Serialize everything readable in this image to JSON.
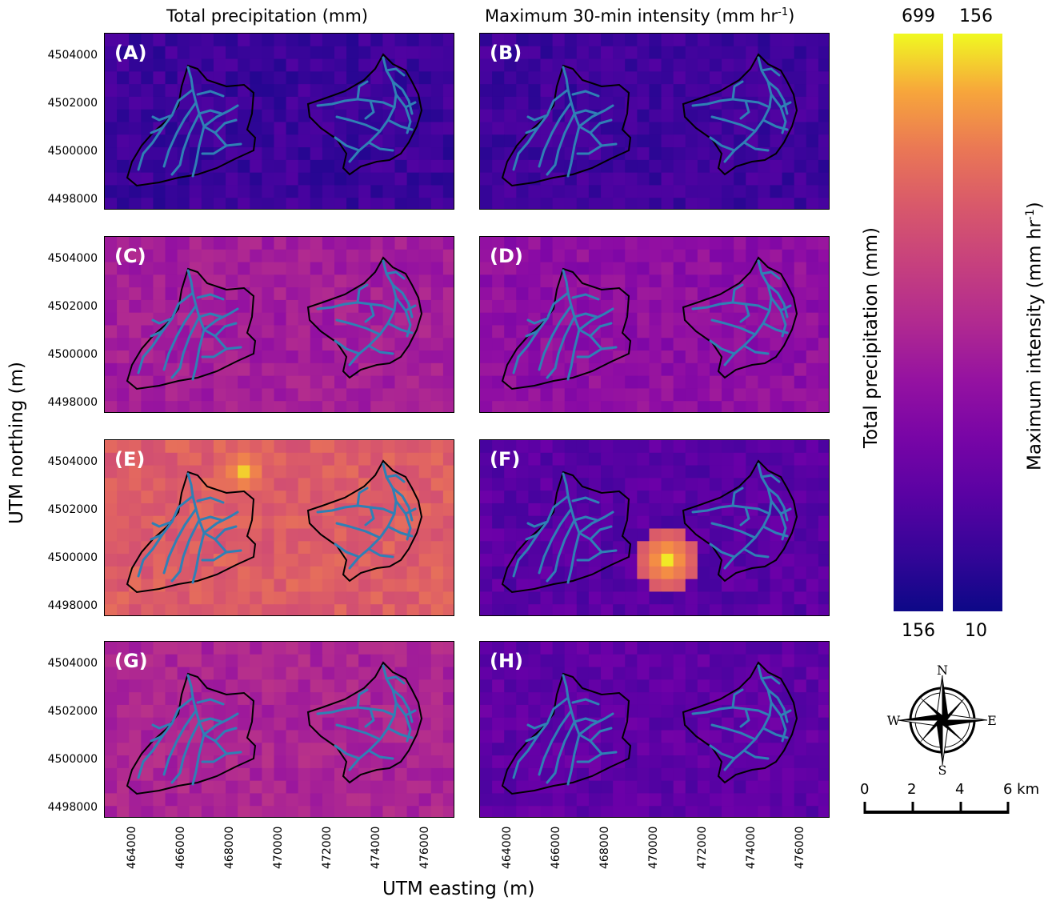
{
  "columns": {
    "left_title": "Total precipitation (mm)",
    "right_title_main": "Maximum 30-min intensity (mm hr",
    "right_title_sup": "-1",
    "right_title_end": ")"
  },
  "axes": {
    "ylabel": "UTM northing (m)",
    "xlabel": "UTM easting (m)",
    "yticks": [
      "4504000",
      "4502000",
      "4500000",
      "4498000"
    ],
    "xticks": [
      "464000",
      "466000",
      "468000",
      "470000",
      "472000",
      "474000",
      "476000"
    ]
  },
  "panels": [
    {
      "label": "(A)",
      "field": "precip",
      "level": 0.12,
      "hot": []
    },
    {
      "label": "(B)",
      "field": "intensity",
      "level": 0.13,
      "hot": []
    },
    {
      "label": "(C)",
      "field": "precip",
      "level": 0.45,
      "hot": []
    },
    {
      "label": "(D)",
      "field": "intensity",
      "level": 0.38,
      "hot": []
    },
    {
      "label": "(E)",
      "field": "precip",
      "level": 0.72,
      "hot": [
        [
          5,
          2,
          0.95
        ]
      ]
    },
    {
      "label": "(F)",
      "field": "intensity",
      "level": 0.2,
      "hot": [
        [
          8,
          9,
          0.98
        ]
      ]
    },
    {
      "label": "(G)",
      "field": "precip",
      "level": 0.48,
      "hot": []
    },
    {
      "label": "(H)",
      "field": "intensity",
      "level": 0.22,
      "hot": []
    }
  ],
  "colorbars": {
    "precip": {
      "max": "699",
      "min": "156",
      "title": "Total precipitation (mm)"
    },
    "intensity": {
      "max": "156",
      "min": "10",
      "title_main": "Maximum intensity (mm hr",
      "title_sup": "-1",
      "title_end": ")"
    }
  },
  "compass": {
    "n": "N",
    "s": "S",
    "e": "E",
    "w": "W"
  },
  "scalebar": {
    "ticks": [
      "0",
      "2",
      "4",
      "6 km"
    ]
  },
  "colors": {
    "stream": "#2f80b5",
    "outline": "#000000",
    "cmap": "plasma"
  }
}
